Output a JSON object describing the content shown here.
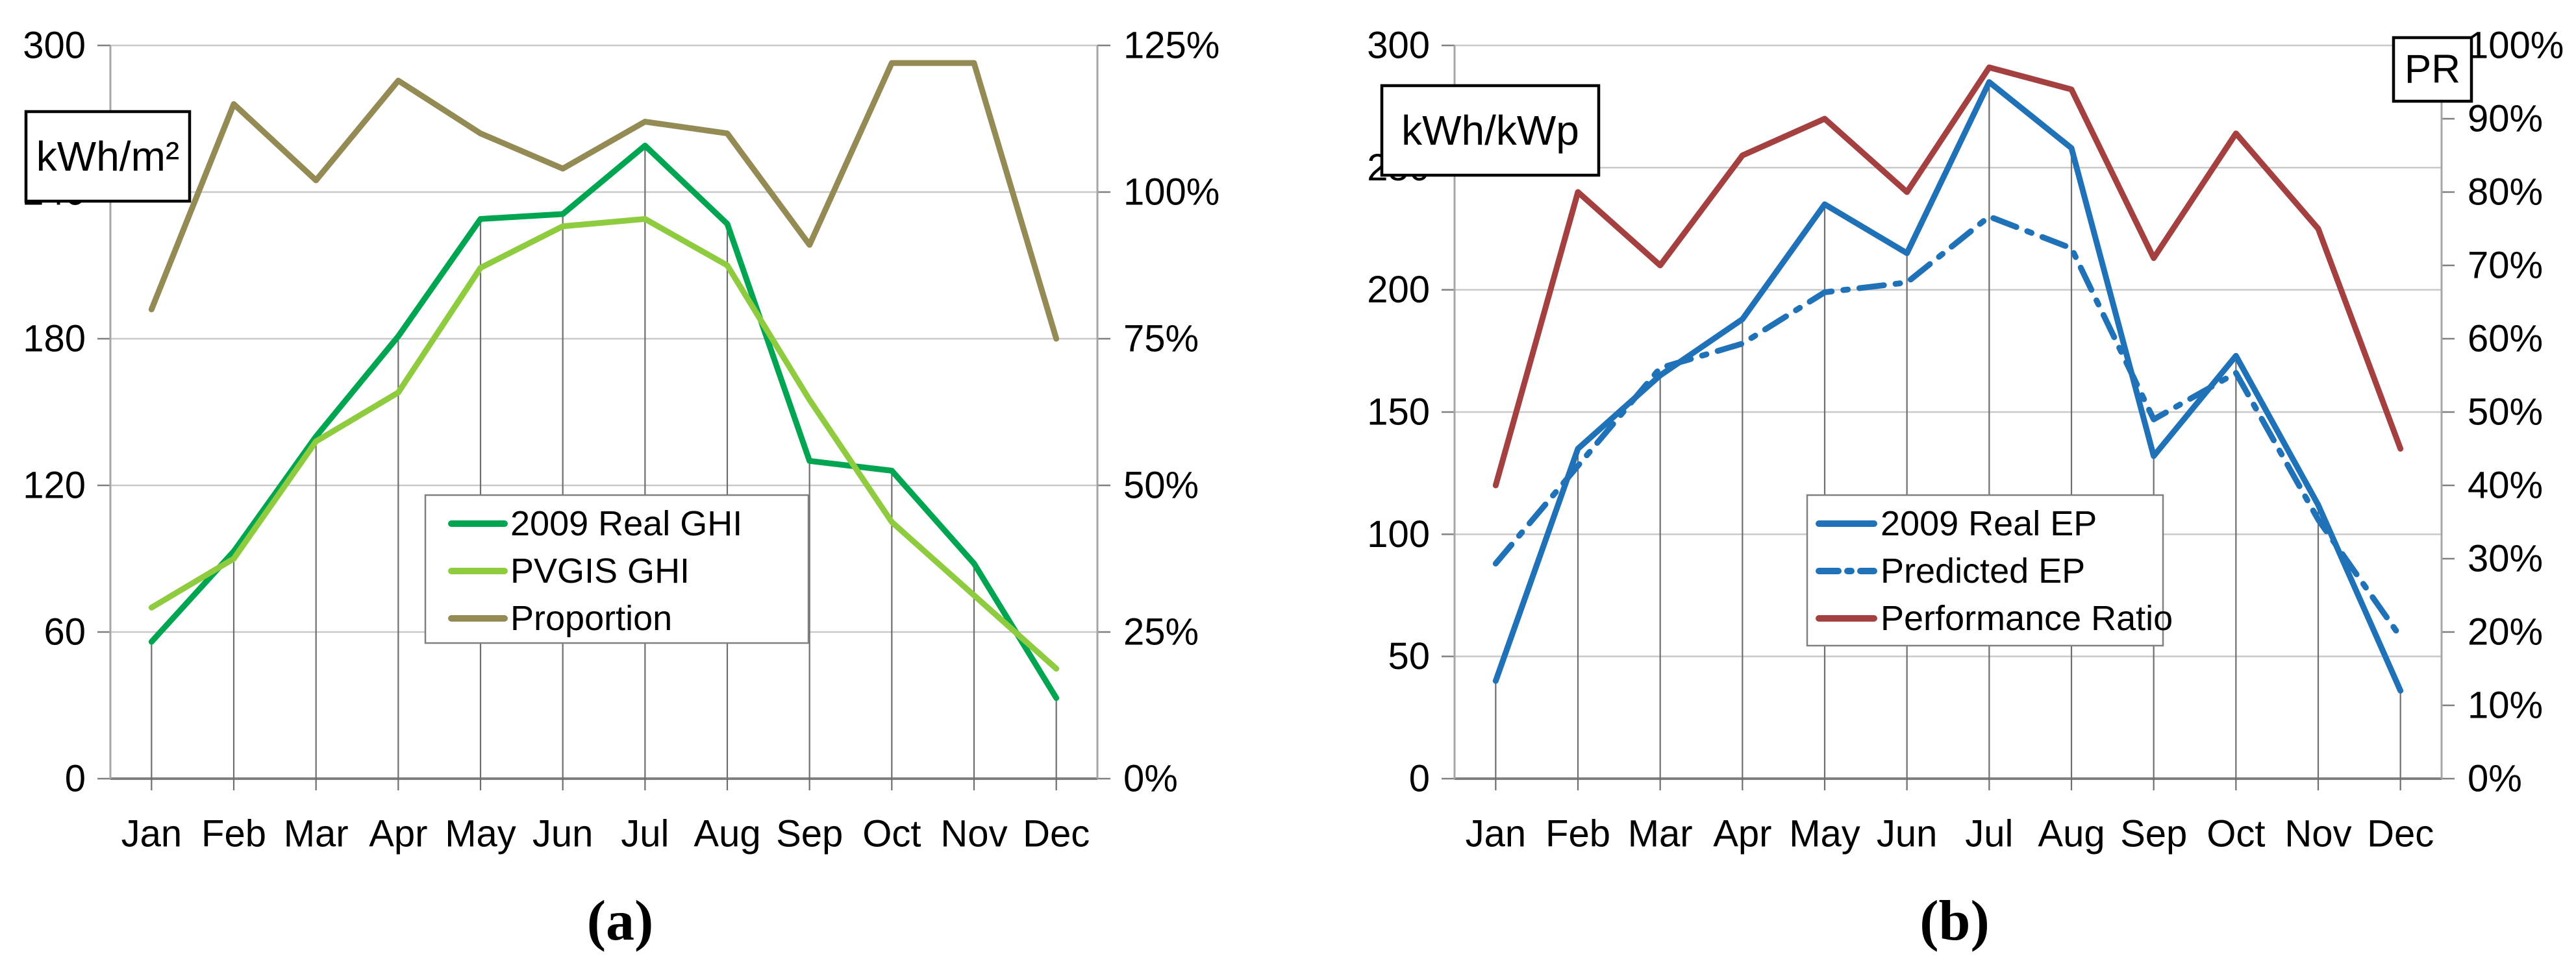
{
  "figure_caption_left": "(a)",
  "figure_caption_right": "(b)",
  "chart_data": [
    {
      "id": "a",
      "type": "line",
      "unit_label": "kWh/m²",
      "caption": "(a)",
      "months": [
        "Jan",
        "Feb",
        "Mar",
        "Apr",
        "May",
        "Jun",
        "Jul",
        "Aug",
        "Sep",
        "Oct",
        "Nov",
        "Dec"
      ],
      "left_axis": {
        "min": 0,
        "max": 300,
        "step": 60,
        "labels": [
          "300",
          "240",
          "180",
          "120",
          "60",
          "0"
        ]
      },
      "right_axis": {
        "min": 0,
        "max": 125,
        "step": 25,
        "unit": "%",
        "labels": [
          "125%",
          "100%",
          "75%",
          "50%",
          "25%",
          "0%"
        ]
      },
      "grid": true,
      "legend_position": "inside-center-bottom",
      "series": [
        {
          "name": "2009 Real GHI",
          "axis": "left",
          "color": "#00A551",
          "style": "solid",
          "values": [
            56,
            93,
            140,
            181,
            229,
            231,
            259,
            227,
            130,
            126,
            88,
            33
          ]
        },
        {
          "name": "PVGIS GHI",
          "axis": "left",
          "color": "#8FCB3F",
          "style": "solid",
          "values": [
            70,
            90,
            138,
            158,
            209,
            226,
            229,
            210,
            155,
            105,
            75,
            45
          ]
        },
        {
          "name": "Proportion",
          "axis": "right",
          "color": "#948A54",
          "style": "solid",
          "values": [
            80,
            115,
            102,
            119,
            110,
            104,
            112,
            110,
            91,
            122,
            122,
            75
          ]
        }
      ]
    },
    {
      "id": "b",
      "type": "line",
      "unit_label": "kWh/kWp",
      "pr_label": "PR",
      "caption": "(b)",
      "months": [
        "Jan",
        "Feb",
        "Mar",
        "Apr",
        "May",
        "Jun",
        "Jul",
        "Aug",
        "Sep",
        "Oct",
        "Nov",
        "Dec"
      ],
      "left_axis": {
        "min": 0,
        "max": 300,
        "step": 50,
        "labels": [
          "300",
          "250",
          "200",
          "150",
          "100",
          "50",
          "0"
        ]
      },
      "right_axis": {
        "min": 0,
        "max": 100,
        "step": 10,
        "unit": "%",
        "labels": [
          "100%",
          "90%",
          "80%",
          "70%",
          "60%",
          "50%",
          "40%",
          "30%",
          "20%",
          "10%",
          "0%"
        ]
      },
      "grid": true,
      "legend_position": "inside-center-bottom",
      "series": [
        {
          "name": "2009 Real EP",
          "axis": "left",
          "color": "#1F72B7",
          "style": "solid",
          "values": [
            40,
            135,
            165,
            188,
            235,
            215,
            285,
            258,
            132,
            173,
            112,
            36
          ]
        },
        {
          "name": "Predicted EP",
          "axis": "left",
          "color": "#1F72B7",
          "style": "dash-dot",
          "values": [
            88,
            128,
            168,
            178,
            199,
            203,
            230,
            217,
            147,
            166,
            106,
            58
          ]
        },
        {
          "name": "Performance Ratio",
          "axis": "right",
          "color": "#A4403F",
          "style": "solid",
          "values": [
            40,
            80,
            70,
            85,
            90,
            80,
            97,
            94,
            71,
            88,
            75,
            45
          ]
        }
      ]
    }
  ]
}
